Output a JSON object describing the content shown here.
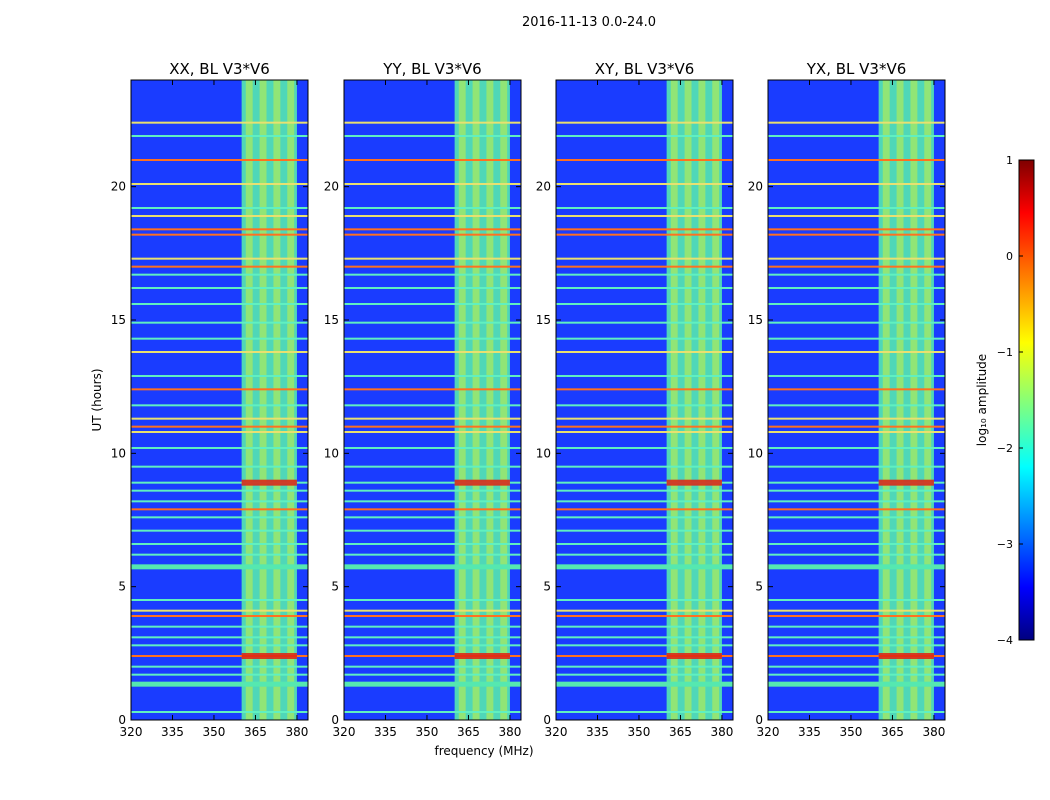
{
  "figure": {
    "suptitle": "2016-11-13 0.0-24.0",
    "xlabel": "frequency (MHz)",
    "ylabel": "UT (hours)"
  },
  "colors": {
    "background_noise": "#1a3cff",
    "band": "#55e8b0",
    "band_bright": "#c8f040",
    "rfi_line_hot": "#ff7020",
    "rfi_line_warm": "#e8e070",
    "rfi_line_cool": "#60f0c0",
    "red_blob": "#e02010"
  },
  "chart_data": [
    {
      "type": "heatmap",
      "title": "XX, BL V3*V6",
      "x_ticks": [
        320,
        335,
        350,
        365,
        380
      ],
      "y_ticks": [
        0,
        5,
        10,
        15,
        20
      ],
      "xlim": [
        320,
        384
      ],
      "ylim": [
        0,
        24
      ],
      "bright_band_mhz": [
        360,
        380
      ]
    },
    {
      "type": "heatmap",
      "title": "YY, BL V3*V6",
      "x_ticks": [
        320,
        335,
        350,
        365,
        380
      ],
      "y_ticks": [
        0,
        5,
        10,
        15,
        20
      ],
      "xlim": [
        320,
        384
      ],
      "ylim": [
        0,
        24
      ],
      "bright_band_mhz": [
        360,
        380
      ]
    },
    {
      "type": "heatmap",
      "title": "XY, BL V3*V6",
      "x_ticks": [
        320,
        335,
        350,
        365,
        380
      ],
      "y_ticks": [
        0,
        5,
        10,
        15,
        20
      ],
      "xlim": [
        320,
        384
      ],
      "ylim": [
        0,
        24
      ],
      "bright_band_mhz": [
        360,
        380
      ]
    },
    {
      "type": "heatmap",
      "title": "YX, BL V3*V6",
      "x_ticks": [
        320,
        335,
        350,
        365,
        380
      ],
      "y_ticks": [
        0,
        5,
        10,
        15,
        20
      ],
      "xlim": [
        320,
        384
      ],
      "ylim": [
        0,
        24
      ],
      "bright_band_mhz": [
        360,
        380
      ]
    }
  ],
  "colorbar": {
    "label": "log₁₀ amplitude",
    "ticks": [
      "1",
      "0",
      "−1",
      "−2",
      "−3",
      "−4"
    ],
    "range": [
      -4,
      1
    ],
    "colormap": "jet"
  }
}
